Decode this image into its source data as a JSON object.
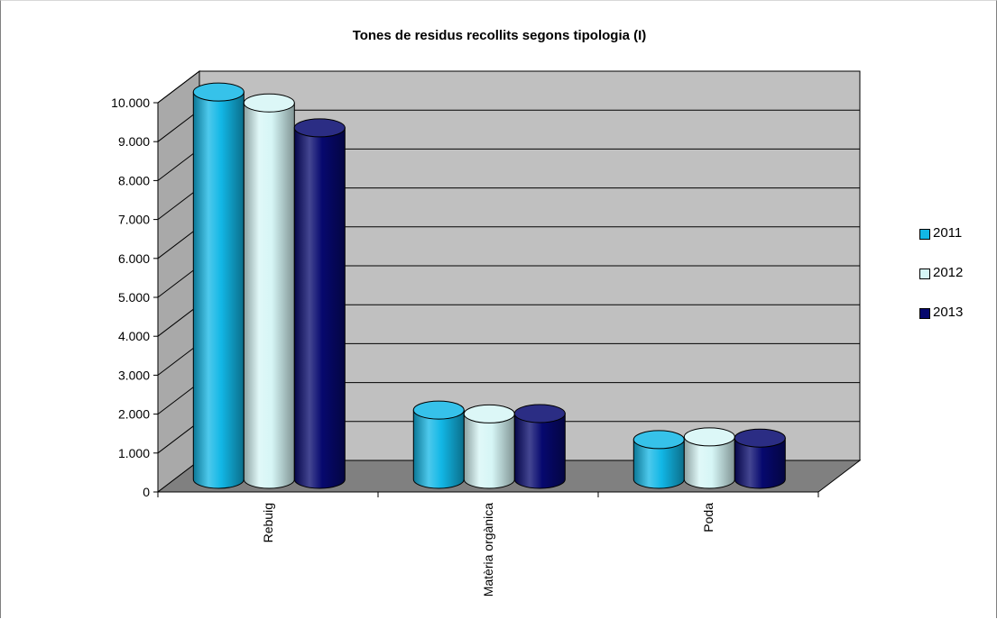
{
  "chart_data": {
    "type": "bar",
    "title": "Tones de residus recollits segons tipologia (I)",
    "categories": [
      "Rebuig",
      "Matèria orgànica",
      "Poda"
    ],
    "series": [
      {
        "name": "2011",
        "values": [
          9950,
          1780,
          1020
        ],
        "color": "#12b7e6"
      },
      {
        "name": "2012",
        "values": [
          9670,
          1680,
          1090
        ],
        "color": "#d6f6f6"
      },
      {
        "name": "2013",
        "values": [
          9030,
          1690,
          1060
        ],
        "color": "#06086e"
      }
    ],
    "yticks": [
      "0",
      "1.000",
      "2.000",
      "3.000",
      "4.000",
      "5.000",
      "6.000",
      "7.000",
      "8.000",
      "9.000",
      "10.000"
    ],
    "ylim": [
      0,
      10000
    ],
    "grid": true,
    "legend_position": "right",
    "wall_color": "#c0c0c0",
    "floor_color": "#808080"
  }
}
